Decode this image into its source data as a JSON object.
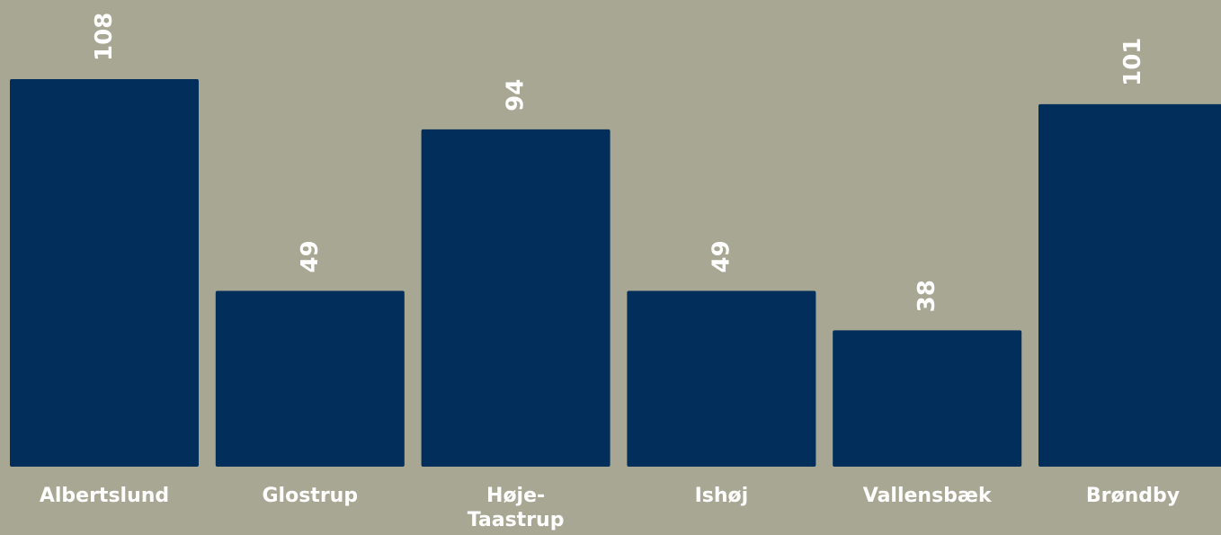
{
  "colors": {
    "background": "#a8a793",
    "bar": "#012e5a",
    "text": "#ffffff"
  },
  "chart_data": {
    "type": "bar",
    "categories": [
      "Albertslund",
      "Glostrup",
      "Høje-Taastrup",
      "Ishøj",
      "Vallensbæk",
      "Brøndby"
    ],
    "category_label_lines": [
      [
        "Albertslund"
      ],
      [
        "Glostrup"
      ],
      [
        "Høje-",
        "Taastrup"
      ],
      [
        "Ishøj"
      ],
      [
        "Vallensbæk"
      ],
      [
        "Brøndby"
      ]
    ],
    "values": [
      108,
      49,
      94,
      49,
      38,
      101
    ],
    "data_labels": [
      "108",
      "49",
      "94",
      "49",
      "38",
      "101"
    ],
    "data_label_orientation": "rotated-vertical",
    "ylim": [
      0,
      108
    ],
    "grid": false,
    "title": "",
    "xlabel": "",
    "ylabel": ""
  }
}
